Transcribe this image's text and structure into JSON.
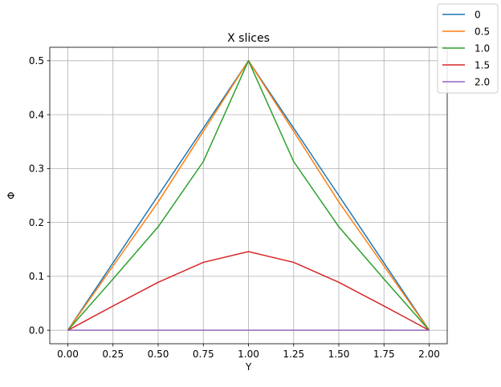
{
  "chart_data": {
    "type": "line",
    "title": "X slices",
    "xlabel": "Y",
    "ylabel": "Φ",
    "xlim": [
      -0.1,
      2.1
    ],
    "ylim": [
      -0.025,
      0.525
    ],
    "xticks": [
      0.0,
      0.25,
      0.5,
      0.75,
      1.0,
      1.25,
      1.5,
      1.75,
      2.0
    ],
    "xtick_labels": [
      "0.00",
      "0.25",
      "0.50",
      "0.75",
      "1.00",
      "1.25",
      "1.50",
      "1.75",
      "2.00"
    ],
    "yticks": [
      0.0,
      0.1,
      0.2,
      0.3,
      0.4,
      0.5
    ],
    "ytick_labels": [
      "0.0",
      "0.1",
      "0.2",
      "0.3",
      "0.4",
      "0.5"
    ],
    "grid": true,
    "legend_position": "top-right",
    "x": [
      0.0,
      0.25,
      0.5,
      0.75,
      1.0,
      1.25,
      1.5,
      1.75,
      2.0
    ],
    "series": [
      {
        "name": "0",
        "color": "#1f77b4",
        "values": [
          0.0,
          0.125,
          0.25,
          0.375,
          0.5,
          0.375,
          0.25,
          0.125,
          0.0
        ]
      },
      {
        "name": "0.5",
        "color": "#ff7f0e",
        "values": [
          0.0,
          0.119,
          0.238,
          0.369,
          0.5,
          0.369,
          0.238,
          0.119,
          0.0
        ]
      },
      {
        "name": "1.0",
        "color": "#2ca02c",
        "values": [
          0.0,
          0.095,
          0.192,
          0.313,
          0.5,
          0.313,
          0.192,
          0.095,
          0.0
        ]
      },
      {
        "name": "1.5",
        "color": "#d62728",
        "values": [
          0.0,
          0.045,
          0.089,
          0.126,
          0.146,
          0.126,
          0.089,
          0.045,
          0.0
        ]
      },
      {
        "name": "2.0",
        "color": "#9467bd",
        "values": [
          0.0,
          0.0,
          0.0,
          0.0,
          0.0,
          0.0,
          0.0,
          0.0,
          0.0
        ]
      }
    ]
  }
}
